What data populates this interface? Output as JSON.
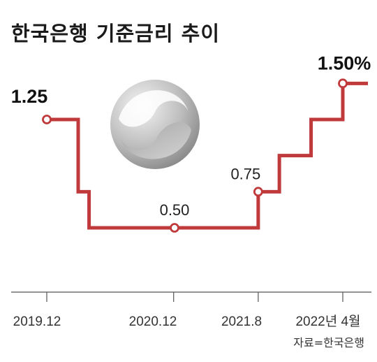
{
  "chart_data": {
    "type": "line",
    "title": "한국은행 기준금리 추이",
    "source": "자료=한국은행",
    "series": [
      {
        "steps": [
          {
            "date": "2019.12",
            "value": 1.25
          },
          {
            "date": "2020.02",
            "value": 0.75
          },
          {
            "date": "2020.04",
            "value": 0.5
          },
          {
            "date": "2021.08",
            "value": 0.75
          },
          {
            "date": "2021.10",
            "value": 1.0
          },
          {
            "date": "2022.01",
            "value": 1.25
          },
          {
            "date": "2022.04",
            "value": 1.5
          }
        ]
      }
    ],
    "x_ticks": [
      "2019.12",
      "2020.12",
      "2021.8",
      "2022년 4월"
    ],
    "value_labels": [
      {
        "date": "2019.12",
        "value": 1.25,
        "text": "1.25",
        "bold": true
      },
      {
        "date": "2020.12",
        "value": 0.5,
        "text": "0.50",
        "bold": false
      },
      {
        "date": "2021.08",
        "value": 0.75,
        "text": "0.75",
        "bold": false
      },
      {
        "date": "2022.04",
        "value": 1.5,
        "text": "1.50%",
        "bold": true
      }
    ],
    "line_color": "#c0393b",
    "logo": "bank-of-korea-emblem-icon"
  }
}
